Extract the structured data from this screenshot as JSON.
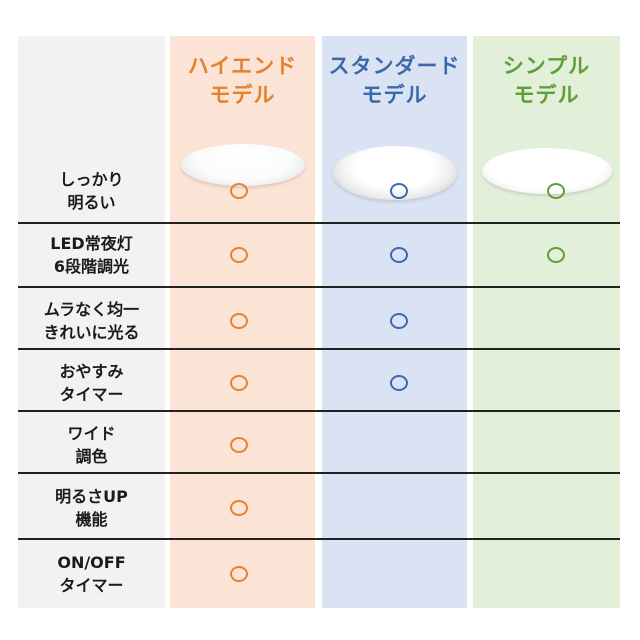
{
  "models": [
    {
      "title_line1": "ハイエンド",
      "title_line2": "モデル",
      "color": "#e6812e"
    },
    {
      "title_line1": "スタンダード",
      "title_line2": "モデル",
      "color": "#3c69a8"
    },
    {
      "title_line1": "シンプル",
      "title_line2": "モデル",
      "color": "#5f9e38"
    }
  ],
  "features": [
    {
      "line1": "しっかり",
      "line2": "明るい",
      "marks": [
        true,
        true,
        true
      ]
    },
    {
      "line1": "LED常夜灯",
      "line2": "6段階調光",
      "marks": [
        true,
        true,
        true
      ]
    },
    {
      "line1": "ムラなく均一",
      "line2": "きれいに光る",
      "marks": [
        true,
        true,
        false
      ]
    },
    {
      "line1": "おやすみ",
      "line2": "タイマー",
      "marks": [
        true,
        true,
        false
      ]
    },
    {
      "line1": "ワイド",
      "line2": "調色",
      "marks": [
        true,
        false,
        false
      ]
    },
    {
      "line1": "明るさUP",
      "line2": "機能",
      "marks": [
        true,
        false,
        false
      ]
    },
    {
      "line1": "ON/OFF",
      "line2": "タイマー",
      "marks": [
        true,
        false,
        false
      ]
    }
  ]
}
